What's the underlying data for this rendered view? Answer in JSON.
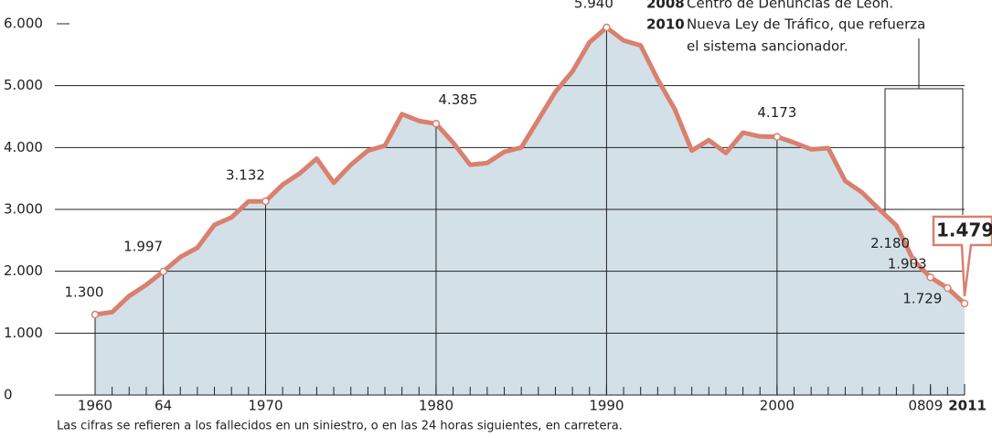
{
  "chart_data": {
    "type": "area",
    "x": [
      1960,
      1961,
      1962,
      1963,
      1964,
      1965,
      1966,
      1967,
      1968,
      1969,
      1970,
      1971,
      1972,
      1973,
      1974,
      1975,
      1976,
      1977,
      1978,
      1979,
      1980,
      1981,
      1982,
      1983,
      1984,
      1985,
      1986,
      1987,
      1988,
      1989,
      1990,
      1991,
      1992,
      1993,
      1994,
      1995,
      1996,
      1997,
      1998,
      1999,
      2000,
      2001,
      2002,
      2003,
      2004,
      2005,
      2006,
      2007,
      2008,
      2009,
      2010,
      2011
    ],
    "series": [
      {
        "color": "#d9806e",
        "fill": "#d3e0e8",
        "values": [
          1300,
          1340,
          1600,
          1780,
          1997,
          2230,
          2380,
          2750,
          2870,
          3130,
          3132,
          3400,
          3580,
          3820,
          3430,
          3720,
          3950,
          4030,
          4540,
          4430,
          4385,
          4080,
          3720,
          3750,
          3930,
          4000,
          4450,
          4900,
          5230,
          5700,
          5940,
          5730,
          5650,
          5100,
          4620,
          3950,
          4120,
          3910,
          4240,
          4180,
          4173,
          4080,
          3970,
          3990,
          3460,
          3270,
          3000,
          2740,
          2180,
          1903,
          1729,
          1479
        ],
        "value_labels": [
          "1.300",
          null,
          null,
          null,
          "1.997",
          null,
          null,
          null,
          null,
          null,
          "3.132",
          null,
          null,
          null,
          null,
          null,
          null,
          null,
          null,
          null,
          "4.385",
          null,
          null,
          null,
          null,
          null,
          null,
          null,
          null,
          null,
          "5.940",
          null,
          null,
          null,
          null,
          null,
          null,
          null,
          null,
          null,
          "4.173",
          null,
          null,
          null,
          null,
          null,
          null,
          null,
          "2.180",
          "1.903",
          "1.729",
          "1.479"
        ]
      }
    ],
    "xlim": [
      1960,
      2011
    ],
    "xticks": [
      1960,
      {
        "value": 1964,
        "label": "64"
      },
      1970,
      1980,
      1990,
      2000,
      {
        "value": 2008,
        "label": "08"
      },
      {
        "value": 2009,
        "label": "09"
      },
      2011
    ],
    "ylim": [
      0,
      6000
    ],
    "yticks": [
      0,
      {
        "value": 1000,
        "label": "1.000"
      },
      {
        "value": 2000,
        "label": "2.000"
      },
      {
        "value": 3000,
        "label": "3.000"
      },
      {
        "value": 4000,
        "label": "4.000"
      },
      {
        "value": 5000,
        "label": "5.000"
      },
      {
        "value": 6000,
        "label": "6.000"
      }
    ],
    "grid": true,
    "annotations": [
      {
        "year": "2008",
        "text": "Centro de Denuncias de León."
      },
      {
        "year": "2010",
        "text": "Nueva Ley de Tráfico, que refuerza",
        "text2": "el sistema sancionador."
      }
    ],
    "footnote": "Las cifras se refieren a los fallecidos en un siniestro, o en las 24 horas siguientes, en carretera."
  }
}
